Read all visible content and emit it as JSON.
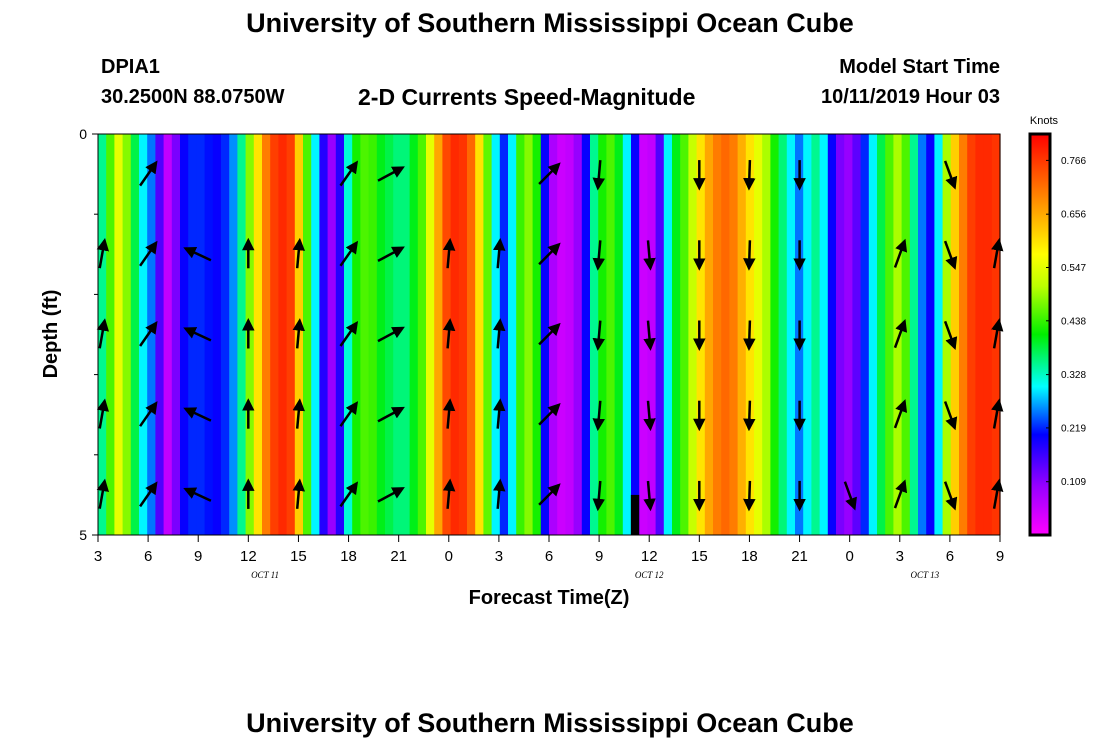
{
  "header": {
    "title": "University of Southern Mississippi Ocean Cube",
    "station_id": "DPIA1",
    "station_coords": "30.2500N 88.0750W",
    "subtitle": "2-D Currents Speed-Magnitude",
    "model_start_label": "Model Start Time",
    "model_start_value": "10/11/2019 Hour 03"
  },
  "footer": {
    "title": "University of Southern Mississippi Ocean Cube"
  },
  "chart_data": {
    "type": "heatmap",
    "title": "2-D Currents Speed-Magnitude",
    "xlabel": "Forecast Time(Z)",
    "ylabel": "Depth (ft)",
    "x_tick_labels": [
      "3",
      "6",
      "9",
      "12",
      "15",
      "18",
      "21",
      "0",
      "3",
      "6",
      "9",
      "12",
      "15",
      "18",
      "21",
      "0",
      "3",
      "6",
      "9"
    ],
    "x_tick_hours": [
      0,
      3,
      6,
      9,
      12,
      15,
      18,
      21,
      24,
      27,
      30,
      33,
      36,
      39,
      42,
      45,
      48,
      51,
      54
    ],
    "x_range_hours": [
      0,
      54
    ],
    "date_labels": [
      {
        "text": "OCT  11",
        "hour": 10
      },
      {
        "text": "OCT  12",
        "hour": 33
      },
      {
        "text": "OCT  13",
        "hour": 49.5
      }
    ],
    "y_tick_labels": [
      "0",
      "5"
    ],
    "y_range_ft": [
      0,
      5
    ],
    "depth_levels_ft": [
      0.5,
      1.5,
      2.5,
      3.5,
      4.5
    ],
    "colorbar": {
      "label": "Knots",
      "range": [
        0,
        0.82
      ],
      "tick_values": [
        0.766,
        0.656,
        0.547,
        0.438,
        0.328,
        0.219,
        0.109
      ],
      "tick_labels": [
        "0.766",
        "0.656",
        "0.547",
        "0.438",
        "0.328",
        "0.219",
        "0.109"
      ]
    },
    "column_speeds_knots": [
      0.35,
      0.45,
      0.55,
      0.48,
      0.38,
      0.3,
      0.25,
      0.15,
      0.06,
      0.12,
      0.2,
      0.22,
      0.22,
      0.21,
      0.2,
      0.22,
      0.26,
      0.35,
      0.48,
      0.6,
      0.7,
      0.76,
      0.78,
      0.76,
      0.62,
      0.45,
      0.3,
      0.18,
      0.1,
      0.18,
      0.32,
      0.42,
      0.45,
      0.44,
      0.4,
      0.38,
      0.36,
      0.36,
      0.4,
      0.45,
      0.55,
      0.66,
      0.75,
      0.78,
      0.77,
      0.72,
      0.6,
      0.46,
      0.3,
      0.22,
      0.3,
      0.44,
      0.48,
      0.42,
      0.2,
      0.08,
      0.05,
      0.06,
      0.1,
      0.2,
      0.35,
      0.42,
      0.45,
      0.4,
      0.3,
      0.2,
      0.05,
      0.06,
      0.15,
      0.3,
      0.4,
      0.45,
      0.52,
      0.6,
      0.66,
      0.7,
      0.72,
      0.7,
      0.65,
      0.6,
      0.55,
      0.5,
      0.42,
      0.36,
      0.3,
      0.25,
      0.3,
      0.35,
      0.3,
      0.2,
      0.12,
      0.1,
      0.14,
      0.22,
      0.3,
      0.38,
      0.45,
      0.5,
      0.45,
      0.35,
      0.25,
      0.2,
      0.3,
      0.5,
      0.62,
      0.7,
      0.76,
      0.78,
      0.78,
      0.77
    ],
    "arrows": [
      {
        "hour": 0.25,
        "depths": [
          1.5,
          2.5,
          3.5,
          4.5
        ],
        "angle_deg": 80
      },
      {
        "hour": 3,
        "depths": [
          0.5,
          1.5,
          2.5,
          3.5,
          4.5
        ],
        "angle_deg": 55
      },
      {
        "hour": 6,
        "depths": [
          1.5,
          2.5,
          3.5,
          4.5
        ],
        "angle_deg": 155
      },
      {
        "hour": 9,
        "depths": [
          1.5,
          2.5,
          3.5,
          4.5
        ],
        "angle_deg": 90
      },
      {
        "hour": 12,
        "depths": [
          1.5,
          2.5,
          3.5,
          4.5
        ],
        "angle_deg": 85
      },
      {
        "hour": 15,
        "depths": [
          0.5,
          1.5,
          2.5,
          3.5,
          4.5
        ],
        "angle_deg": 55
      },
      {
        "hour": 17.5,
        "depths": [
          0.5,
          1.5,
          2.5,
          3.5,
          4.5
        ],
        "angle_deg": 28
      },
      {
        "hour": 21,
        "depths": [
          1.5,
          2.5,
          3.5,
          4.5
        ],
        "angle_deg": 85
      },
      {
        "hour": 24,
        "depths": [
          1.5,
          2.5,
          3.5,
          4.5
        ],
        "angle_deg": 85
      },
      {
        "hour": 27,
        "depths": [
          0.5,
          1.5,
          2.5,
          3.5,
          4.5
        ],
        "angle_deg": 45
      },
      {
        "hour": 30,
        "depths": [
          0.5,
          1.5,
          2.5,
          3.5,
          4.5
        ],
        "angle_deg": 265
      },
      {
        "hour": 33,
        "depths": [
          1.5,
          2.5,
          3.5,
          4.5
        ],
        "angle_deg": 275
      },
      {
        "hour": 36,
        "depths": [
          0.5,
          1.5,
          2.5,
          3.5,
          4.5
        ],
        "angle_deg": 270
      },
      {
        "hour": 39,
        "depths": [
          0.5,
          1.5,
          2.5,
          3.5,
          4.5
        ],
        "angle_deg": 268
      },
      {
        "hour": 42,
        "depths": [
          0.5,
          1.5,
          2.5,
          3.5,
          4.5
        ],
        "angle_deg": 270
      },
      {
        "hour": 45,
        "depths": [
          4.5
        ],
        "angle_deg": 290
      },
      {
        "hour": 48,
        "depths": [
          1.5,
          2.5,
          3.5,
          4.5
        ],
        "angle_deg": 70
      },
      {
        "hour": 51,
        "depths": [
          0.5,
          1.5,
          2.5,
          3.5,
          4.5
        ],
        "angle_deg": 290
      },
      {
        "hour": 54,
        "depths": [
          1.5,
          2.5,
          3.5,
          4.5
        ],
        "angle_deg": 80
      }
    ],
    "data_gaps": [
      {
        "hour_start": 31.9,
        "hour_end": 32.4,
        "depth_ft_start": 4.5,
        "depth_ft_end": 5
      }
    ],
    "grid": false
  }
}
